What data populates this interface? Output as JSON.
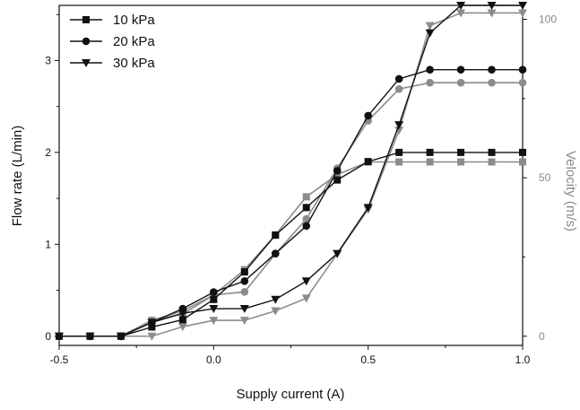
{
  "chart_data": {
    "type": "line",
    "xlabel": "Supply current (A)",
    "ylabel": "Flow rate (L/min)",
    "ylabel_right": "Velocity (m/s)",
    "xlim": [
      -0.5,
      1.0
    ],
    "ylim": [
      -0.1,
      3.6
    ],
    "ylim_right": [
      -2.9,
      104.4
    ],
    "x_ticks": [
      -0.5,
      0.0,
      0.5,
      1.0
    ],
    "x_tick_labels": [
      "-0.5",
      "0.0",
      "0.5",
      "1.0"
    ],
    "y_ticks": [
      0,
      1,
      2,
      3
    ],
    "y_tick_labels": [
      "0",
      "1",
      "2",
      "3"
    ],
    "y_right_ticks": [
      0,
      50,
      100
    ],
    "y_right_tick_labels": [
      "0",
      "50",
      "100"
    ],
    "grid": false,
    "legend_position": "top-left",
    "colors": {
      "flow": "#111111",
      "velocity": "#8c8c8c"
    },
    "x": [
      -0.5,
      -0.4,
      -0.3,
      -0.2,
      -0.1,
      0.0,
      0.1,
      0.2,
      0.3,
      0.4,
      0.5,
      0.6,
      0.7,
      0.8,
      0.9,
      1.0
    ],
    "series": [
      {
        "name": "10 kPa",
        "marker": "square",
        "flow": [
          0,
          0,
          0,
          0.1,
          0.18,
          0.4,
          0.7,
          1.1,
          1.4,
          1.7,
          1.9,
          2.0,
          2.0,
          2.0,
          2.0,
          2.0
        ],
        "velocity": [
          0,
          0,
          0,
          5,
          8,
          13,
          21,
          32,
          44,
          51,
          55,
          55,
          55,
          55,
          55,
          55
        ]
      },
      {
        "name": "20 kPa",
        "marker": "circle",
        "flow": [
          0,
          0,
          0,
          0.15,
          0.3,
          0.48,
          0.6,
          0.9,
          1.2,
          1.8,
          2.4,
          2.8,
          2.9,
          2.9,
          2.9,
          2.9
        ],
        "velocity": [
          0,
          0,
          0,
          5,
          7,
          13,
          14,
          26,
          37,
          53,
          68,
          78,
          80,
          80,
          80,
          80
        ]
      },
      {
        "name": "30 kPa",
        "marker": "triangle-down",
        "flow": [
          0,
          0,
          0,
          0.15,
          0.25,
          0.3,
          0.3,
          0.4,
          0.6,
          0.9,
          1.4,
          2.3,
          3.3,
          3.6,
          3.6,
          3.6
        ],
        "velocity": [
          0,
          0,
          0,
          0,
          3,
          5,
          5,
          8,
          12,
          26,
          40,
          65,
          98,
          102,
          102,
          102
        ]
      }
    ]
  }
}
